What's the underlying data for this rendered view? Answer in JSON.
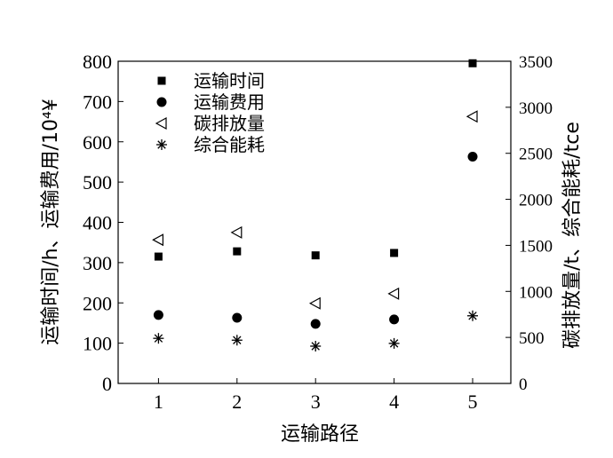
{
  "chart_data": {
    "type": "scatter",
    "x": [
      1,
      2,
      3,
      4,
      5
    ],
    "xlabel": "运输路径",
    "xlim": [
      0.5,
      5.5
    ],
    "xticks": [
      "1",
      "2",
      "3",
      "4",
      "5"
    ],
    "ylabel_left": "运输时间/h、运输费用/10⁴¥",
    "ylim_left": [
      0,
      800
    ],
    "yticks_left": [
      "0",
      "100",
      "200",
      "300",
      "400",
      "500",
      "600",
      "700",
      "800"
    ],
    "ylabel_right": "碳排放量/t、综合能耗/tce",
    "ylim_right": [
      0,
      3500
    ],
    "yticks_right": [
      "0",
      "500",
      "1000",
      "1500",
      "2000",
      "2500",
      "3000",
      "3500"
    ],
    "legend_position": "top-left",
    "grid": false,
    "series": [
      {
        "name": "运输时间",
        "marker": "square",
        "axis": "left",
        "values": [
          315,
          328,
          318,
          324,
          795
        ]
      },
      {
        "name": "运输费用",
        "marker": "circle",
        "axis": "left",
        "values": [
          170,
          163,
          148,
          159,
          563
        ]
      },
      {
        "name": "碳排放量",
        "marker": "triangle-left",
        "axis": "right",
        "values": [
          1560,
          1640,
          870,
          975,
          2900
        ]
      },
      {
        "name": "综合能耗",
        "marker": "asterisk",
        "axis": "right",
        "values": [
          490,
          470,
          405,
          435,
          735
        ]
      }
    ]
  }
}
